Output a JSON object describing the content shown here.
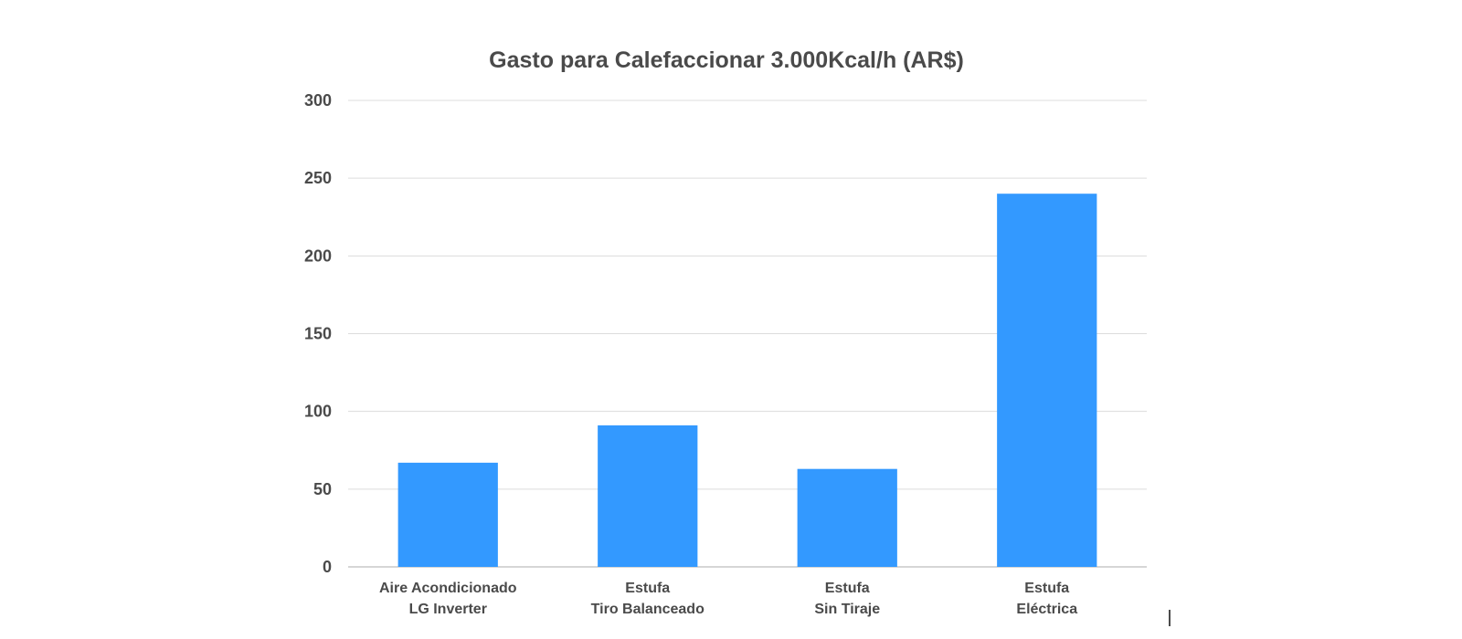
{
  "chart_data": {
    "type": "bar",
    "title": "Gasto para Calefaccionar 3.000Kcal/h (AR$)",
    "xlabel": "",
    "ylabel": "",
    "categories": [
      [
        "Aire Acondicionado",
        "LG Inverter"
      ],
      [
        "Estufa",
        "Tiro Balanceado"
      ],
      [
        "Estufa",
        "Sin Tiraje"
      ],
      [
        "Estufa",
        "Eléctrica"
      ]
    ],
    "values": [
      67,
      91,
      63,
      240
    ],
    "ylim": [
      0,
      300
    ],
    "yticks": [
      "0",
      "50",
      "100",
      "150",
      "200",
      "250",
      "300"
    ],
    "bar_color": "#3399ff",
    "grid": true,
    "legend": "none"
  }
}
